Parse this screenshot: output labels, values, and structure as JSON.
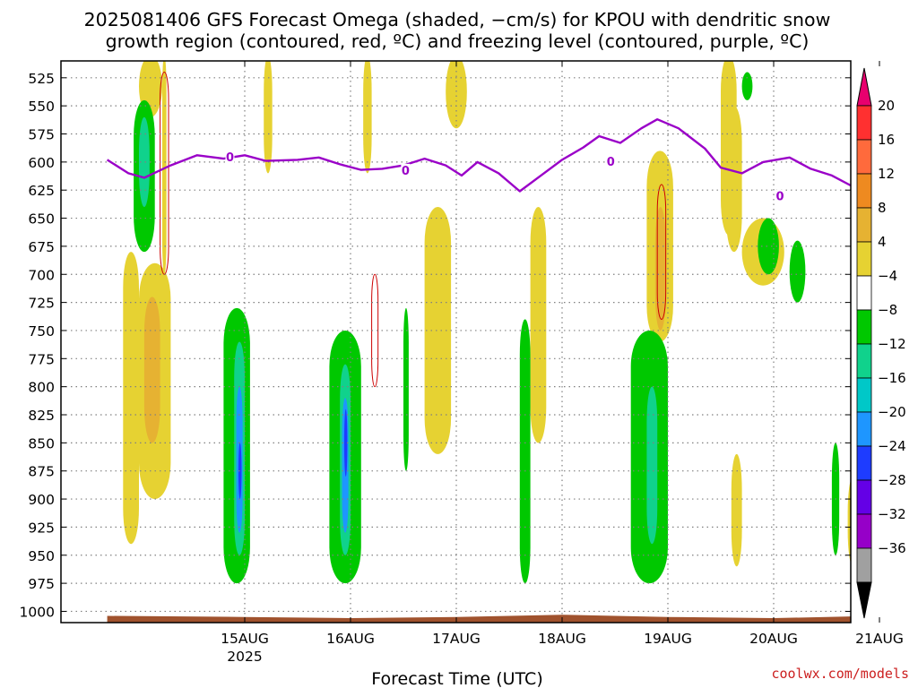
{
  "title": {
    "line1": "2025081406 GFS Forecast Omega (shaded, −cm/s) for KPOU with dendritic snow",
    "line2": "growth region (contoured, red, ºC) and freezing level (contoured, purple, ºC)"
  },
  "footer": {
    "xlabel": "Forecast Time (UTC)",
    "credit": "coolwx.com/models"
  },
  "colors": {
    "freezing_level": "#9a00c8",
    "ground": "#a0522d",
    "dgz_contour": "#cc0000"
  },
  "chart_data": {
    "type": "heatmap",
    "title": "2025081406 GFS Forecast Omega (shaded, −cm/s) for KPOU with dendritic snow growth region (contoured, red, ºC) and freezing level (contoured, purple, ºC)",
    "xlabel": "Forecast Time (UTC)",
    "ylabel": "",
    "x_ticks": [
      {
        "t": 1,
        "label": "15AUG",
        "sublabel": "2025"
      },
      {
        "t": 2,
        "label": "16AUG",
        "sublabel": ""
      },
      {
        "t": 3,
        "label": "17AUG",
        "sublabel": ""
      },
      {
        "t": 4,
        "label": "18AUG",
        "sublabel": ""
      },
      {
        "t": 5,
        "label": "19AUG",
        "sublabel": ""
      },
      {
        "t": 6,
        "label": "20AUG",
        "sublabel": ""
      },
      {
        "t": 7,
        "label": "21AUG",
        "sublabel": ""
      }
    ],
    "xlim": [
      "2025-08-14 06Z",
      "2025-08-21 18Z"
    ],
    "y_ticks": [
      525,
      550,
      575,
      600,
      625,
      650,
      675,
      700,
      725,
      750,
      775,
      800,
      825,
      850,
      875,
      900,
      925,
      950,
      975,
      1000
    ],
    "ylim": [
      1010,
      510
    ],
    "grid": true,
    "colorbar": {
      "labels": [
        "20",
        "16",
        "12",
        "8",
        "4",
        "−4",
        "−8",
        "−12",
        "−16",
        "−20",
        "−24",
        "−28",
        "−32",
        "−36"
      ],
      "colors": [
        "#e8006e",
        "#ff3030",
        "#ff6a3c",
        "#ee8a20",
        "#e6b232",
        "#e6d232",
        "#ffffff",
        "#00c800",
        "#10d28c",
        "#00c8c8",
        "#1e96ff",
        "#1e3cff",
        "#6400e6",
        "#9600c8",
        "#a0a0a0",
        "#000000"
      ]
    },
    "freezing_level": {
      "label": "0",
      "label_positions": [
        {
          "t": 0.86,
          "p": 596
        },
        {
          "t": 2.52,
          "p": 608
        },
        {
          "t": 4.46,
          "p": 600
        },
        {
          "t": 6.06,
          "p": 631
        }
      ],
      "points": [
        {
          "t": -0.3,
          "p": 598
        },
        {
          "t": -0.1,
          "p": 610
        },
        {
          "t": 0.05,
          "p": 614
        },
        {
          "t": 0.3,
          "p": 603
        },
        {
          "t": 0.55,
          "p": 594
        },
        {
          "t": 0.8,
          "p": 597
        },
        {
          "t": 1.0,
          "p": 594
        },
        {
          "t": 1.2,
          "p": 599
        },
        {
          "t": 1.5,
          "p": 598
        },
        {
          "t": 1.7,
          "p": 596
        },
        {
          "t": 1.9,
          "p": 602
        },
        {
          "t": 2.1,
          "p": 607
        },
        {
          "t": 2.3,
          "p": 606
        },
        {
          "t": 2.5,
          "p": 603
        },
        {
          "t": 2.7,
          "p": 597
        },
        {
          "t": 2.9,
          "p": 603
        },
        {
          "t": 3.05,
          "p": 612
        },
        {
          "t": 3.2,
          "p": 600
        },
        {
          "t": 3.4,
          "p": 610
        },
        {
          "t": 3.6,
          "p": 626
        },
        {
          "t": 3.8,
          "p": 612
        },
        {
          "t": 4.0,
          "p": 598
        },
        {
          "t": 4.2,
          "p": 587
        },
        {
          "t": 4.35,
          "p": 577
        },
        {
          "t": 4.55,
          "p": 583
        },
        {
          "t": 4.75,
          "p": 570
        },
        {
          "t": 4.9,
          "p": 562
        },
        {
          "t": 5.1,
          "p": 570
        },
        {
          "t": 5.35,
          "p": 588
        },
        {
          "t": 5.5,
          "p": 605
        },
        {
          "t": 5.7,
          "p": 610
        },
        {
          "t": 5.9,
          "p": 600
        },
        {
          "t": 6.15,
          "p": 596
        },
        {
          "t": 6.35,
          "p": 606
        },
        {
          "t": 6.55,
          "p": 612
        },
        {
          "t": 6.75,
          "p": 622
        },
        {
          "t": 6.95,
          "p": 618
        },
        {
          "t": 7.1,
          "p": 623
        },
        {
          "t": 7.35,
          "p": 632
        },
        {
          "t": 7.55,
          "p": 628
        },
        {
          "t": 7.75,
          "p": 600
        },
        {
          "t": 7.95,
          "p": 596
        }
      ]
    },
    "surface_pressure": [
      {
        "t": -0.3,
        "p": 1004
      },
      {
        "t": 1.0,
        "p": 1005
      },
      {
        "t": 2.0,
        "p": 1006
      },
      {
        "t": 3.0,
        "p": 1005
      },
      {
        "t": 4.0,
        "p": 1003
      },
      {
        "t": 5.0,
        "p": 1005
      },
      {
        "t": 6.0,
        "p": 1006
      },
      {
        "t": 7.0,
        "p": 1004
      },
      {
        "t": 7.95,
        "p": 1004
      }
    ],
    "omega_regions": [
      {
        "color": "#e6d232",
        "t": [
          0.0,
          0.22
        ],
        "p": [
          505,
          560
        ]
      },
      {
        "color": "#e6d232",
        "t": [
          0.22,
          0.26
        ],
        "p": [
          505,
          700
        ]
      },
      {
        "color": "#e6d232",
        "t": [
          1.18,
          1.26
        ],
        "p": [
          505,
          610
        ]
      },
      {
        "color": "#e6d232",
        "t": [
          2.12,
          2.2
        ],
        "p": [
          505,
          610
        ]
      },
      {
        "color": "#e6d232",
        "t": [
          2.9,
          3.1
        ],
        "p": [
          505,
          570
        ]
      },
      {
        "color": "#e6d232",
        "t": [
          5.5,
          5.65
        ],
        "p": [
          505,
          665
        ]
      },
      {
        "color": "#e6d232",
        "t": [
          6.8,
          6.9
        ],
        "p": [
          505,
          535
        ]
      },
      {
        "color": "#e6d232",
        "t": [
          -0.15,
          0.0
        ],
        "p": [
          680,
          940
        ]
      },
      {
        "color": "#e6d232",
        "t": [
          0.0,
          0.3
        ],
        "p": [
          690,
          900
        ]
      },
      {
        "color": "#e6d232",
        "t": [
          3.7,
          3.85
        ],
        "p": [
          640,
          850
        ]
      },
      {
        "color": "#e6d232",
        "t": [
          4.8,
          5.05
        ],
        "p": [
          590,
          760
        ]
      },
      {
        "color": "#e6d232",
        "t": [
          5.55,
          5.7
        ],
        "p": [
          550,
          680
        ]
      },
      {
        "color": "#e6d232",
        "t": [
          5.7,
          6.1
        ],
        "p": [
          650,
          710
        ]
      },
      {
        "color": "#e6d232",
        "t": [
          2.7,
          2.95
        ],
        "p": [
          640,
          860
        ]
      },
      {
        "color": "#e6d232",
        "t": [
          4.7,
          4.9
        ],
        "p": [
          830,
          960
        ]
      },
      {
        "color": "#e6d232",
        "t": [
          5.6,
          5.7
        ],
        "p": [
          860,
          960
        ]
      },
      {
        "color": "#e6d232",
        "t": [
          6.7,
          6.8
        ],
        "p": [
          880,
          960
        ]
      },
      {
        "color": "#e6d232",
        "t": [
          7.67,
          7.75
        ],
        "p": [
          880,
          930
        ]
      },
      {
        "color": "#e6b232",
        "t": [
          0.05,
          0.2
        ],
        "p": [
          720,
          850
        ]
      },
      {
        "color": "#e6b232",
        "t": [
          4.88,
          4.98
        ],
        "p": [
          640,
          750
        ]
      },
      {
        "color": "#00c800",
        "t": [
          -0.05,
          0.15
        ],
        "p": [
          545,
          680
        ]
      },
      {
        "color": "#00c800",
        "t": [
          0.8,
          1.05
        ],
        "p": [
          730,
          975
        ]
      },
      {
        "color": "#00c800",
        "t": [
          1.8,
          2.1
        ],
        "p": [
          750,
          975
        ]
      },
      {
        "color": "#00c800",
        "t": [
          2.5,
          2.55
        ],
        "p": [
          730,
          875
        ]
      },
      {
        "color": "#00c800",
        "t": [
          3.6,
          3.7
        ],
        "p": [
          740,
          975
        ]
      },
      {
        "color": "#00c800",
        "t": [
          4.65,
          5.0
        ],
        "p": [
          750,
          975
        ]
      },
      {
        "color": "#00c800",
        "t": [
          5.85,
          6.05
        ],
        "p": [
          650,
          700
        ]
      },
      {
        "color": "#00c800",
        "t": [
          6.15,
          6.3
        ],
        "p": [
          670,
          725
        ]
      },
      {
        "color": "#00c800",
        "t": [
          6.8,
          7.1
        ],
        "p": [
          650,
          780
        ]
      },
      {
        "color": "#00c800",
        "t": [
          6.55,
          6.62
        ],
        "p": [
          850,
          950
        ]
      },
      {
        "color": "#00c800",
        "t": [
          7.72,
          7.8
        ],
        "p": [
          760,
          840
        ]
      },
      {
        "color": "#00c800",
        "t": [
          5.7,
          5.8
        ],
        "p": [
          520,
          545
        ]
      },
      {
        "color": "#10d28c",
        "t": [
          0.0,
          0.1
        ],
        "p": [
          560,
          640
        ]
      },
      {
        "color": "#10d28c",
        "t": [
          0.9,
          1.0
        ],
        "p": [
          760,
          950
        ]
      },
      {
        "color": "#10d28c",
        "t": [
          1.9,
          2.0
        ],
        "p": [
          780,
          950
        ]
      },
      {
        "color": "#10d28c",
        "t": [
          4.8,
          4.9
        ],
        "p": [
          800,
          940
        ]
      },
      {
        "color": "#10d28c",
        "t": [
          6.95,
          7.05
        ],
        "p": [
          660,
          760
        ]
      },
      {
        "color": "#1e96ff",
        "t": [
          0.92,
          0.98
        ],
        "p": [
          800,
          930
        ]
      },
      {
        "color": "#1e96ff",
        "t": [
          1.92,
          1.98
        ],
        "p": [
          810,
          930
        ]
      },
      {
        "color": "#1e96ff",
        "t": [
          6.98,
          7.03
        ],
        "p": [
          690,
          740
        ]
      },
      {
        "color": "#1e3cff",
        "t": [
          0.94,
          0.97
        ],
        "p": [
          850,
          900
        ]
      },
      {
        "color": "#1e3cff",
        "t": [
          1.94,
          1.97
        ],
        "p": [
          820,
          880
        ]
      }
    ],
    "dgz_contours": [
      {
        "t": [
          0.2,
          0.28
        ],
        "p": [
          520,
          700
        ]
      },
      {
        "t": [
          2.2,
          2.26
        ],
        "p": [
          700,
          800
        ]
      },
      {
        "t": [
          4.9,
          4.98
        ],
        "p": [
          620,
          740
        ]
      }
    ]
  }
}
